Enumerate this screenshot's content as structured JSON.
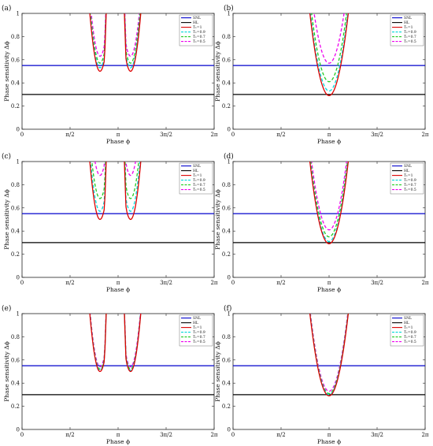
{
  "chart_data": [
    {
      "panel_label": "(a)",
      "type": "line",
      "xlabel": "Phase ϕ",
      "ylabel": "Phase sensitivity Δϕ",
      "xlim": [
        0,
        6.2832
      ],
      "ylim": [
        0,
        1
      ],
      "xticks": [
        "0",
        "π/2",
        "π",
        "3π/2",
        "2π"
      ],
      "yticks": [
        "0",
        "0.2",
        "0.4",
        "0.6",
        "0.8",
        "1"
      ],
      "hlines": [
        {
          "name": "SNL",
          "value": 0.55,
          "color": "#0000cc"
        },
        {
          "name": "HL",
          "value": 0.3,
          "color": "#000000"
        }
      ],
      "double_well": true,
      "min_positions": [
        2.55,
        3.55
      ],
      "curvature": 4.5,
      "series": [
        {
          "name": "T₁=1",
          "min": 0.5,
          "color": "#dd0000",
          "dash": "solid"
        },
        {
          "name": "T₁=0.9",
          "min": 0.53,
          "color": "#00d8d8",
          "dash": "dash"
        },
        {
          "name": "T₁=0.7",
          "min": 0.57,
          "color": "#22cc22",
          "dash": "dash"
        },
        {
          "name": "T₁=0.5",
          "min": 0.63,
          "color": "#ee00ee",
          "dash": "dash"
        }
      ]
    },
    {
      "panel_label": "(b)",
      "type": "line",
      "xlabel": "Phase ϕ",
      "ylabel": "Phase sensitivity Δϕ",
      "xlim": [
        0,
        6.2832
      ],
      "ylim": [
        0,
        1
      ],
      "xticks": [
        "0",
        "π/2",
        "π",
        "3π/2",
        "2π"
      ],
      "yticks": [
        "0",
        "0.2",
        "0.4",
        "0.6",
        "0.8",
        "1"
      ],
      "hlines": [
        {
          "name": "SNL",
          "value": 0.55,
          "color": "#0000cc"
        },
        {
          "name": "HL",
          "value": 0.3,
          "color": "#000000"
        }
      ],
      "double_well": false,
      "min_positions": [
        3.1416
      ],
      "curvature": 1.8,
      "series": [
        {
          "name": "T₁=1",
          "min": 0.29,
          "color": "#dd0000",
          "dash": "solid"
        },
        {
          "name": "T₁=0.9",
          "min": 0.33,
          "color": "#00d8d8",
          "dash": "dash"
        },
        {
          "name": "T₁=0.7",
          "min": 0.41,
          "color": "#22cc22",
          "dash": "dash"
        },
        {
          "name": "T₁=0.5",
          "min": 0.57,
          "color": "#ee00ee",
          "dash": "dash"
        }
      ]
    },
    {
      "panel_label": "(c)",
      "type": "line",
      "xlabel": "Phase ϕ",
      "ylabel": "Phase sensitivity Δϕ",
      "xlim": [
        0,
        6.2832
      ],
      "ylim": [
        0,
        1
      ],
      "xticks": [
        "0",
        "π/2",
        "π",
        "3π/2",
        "2π"
      ],
      "yticks": [
        "0",
        "0.2",
        "0.4",
        "0.6",
        "0.8",
        "1"
      ],
      "hlines": [
        {
          "name": "SNL",
          "value": 0.55,
          "color": "#0000cc"
        },
        {
          "name": "HL",
          "value": 0.3,
          "color": "#000000"
        }
      ],
      "double_well": true,
      "min_positions": [
        2.55,
        3.55
      ],
      "curvature": 4.5,
      "series": [
        {
          "name": "T₁=1",
          "min": 0.5,
          "color": "#dd0000",
          "dash": "solid"
        },
        {
          "name": "T₁=0.9",
          "min": 0.57,
          "color": "#00d8d8",
          "dash": "dash"
        },
        {
          "name": "T₁=0.7",
          "min": 0.68,
          "color": "#22cc22",
          "dash": "dash"
        },
        {
          "name": "T₁=0.5",
          "min": 0.88,
          "color": "#ee00ee",
          "dash": "dash"
        }
      ]
    },
    {
      "panel_label": "(d)",
      "type": "line",
      "xlabel": "Phase ϕ",
      "ylabel": "Phase sensitivity Δϕ",
      "xlim": [
        0,
        6.2832
      ],
      "ylim": [
        0,
        1
      ],
      "xticks": [
        "0",
        "π/2",
        "π",
        "3π/2",
        "2π"
      ],
      "yticks": [
        "0",
        "0.2",
        "0.4",
        "0.6",
        "0.8",
        "1"
      ],
      "hlines": [
        {
          "name": "SNL",
          "value": 0.55,
          "color": "#0000cc"
        },
        {
          "name": "HL",
          "value": 0.3,
          "color": "#000000"
        }
      ],
      "double_well": false,
      "min_positions": [
        3.1416
      ],
      "curvature": 1.8,
      "series": [
        {
          "name": "T₁=1",
          "min": 0.29,
          "color": "#dd0000",
          "dash": "solid"
        },
        {
          "name": "T₁=0.9",
          "min": 0.31,
          "color": "#00d8d8",
          "dash": "dash"
        },
        {
          "name": "T₁=0.7",
          "min": 0.35,
          "color": "#22cc22",
          "dash": "dash"
        },
        {
          "name": "T₁=0.5",
          "min": 0.41,
          "color": "#ee00ee",
          "dash": "dash"
        }
      ]
    },
    {
      "panel_label": "(e)",
      "type": "line",
      "xlabel": "Phase ϕ",
      "ylabel": "Phase sensitivity Δϕ",
      "xlim": [
        0,
        6.2832
      ],
      "ylim": [
        0,
        1
      ],
      "xticks": [
        "0",
        "π/2",
        "π",
        "3π/2",
        "2π"
      ],
      "yticks": [
        "0",
        "0.2",
        "0.4",
        "0.6",
        "0.8",
        "1"
      ],
      "hlines": [
        {
          "name": "SNL",
          "value": 0.55,
          "color": "#0000cc"
        },
        {
          "name": "HL",
          "value": 0.3,
          "color": "#000000"
        }
      ],
      "double_well": true,
      "min_positions": [
        2.55,
        3.55
      ],
      "curvature": 4.5,
      "series": [
        {
          "name": "T₁=1",
          "min": 0.5,
          "color": "#dd0000",
          "dash": "solid"
        },
        {
          "name": "T₁=0.9",
          "min": 0.51,
          "color": "#00d8d8",
          "dash": "dash"
        },
        {
          "name": "T₁=0.7",
          "min": 0.52,
          "color": "#22cc22",
          "dash": "dash"
        },
        {
          "name": "T₁=0.5",
          "min": 0.54,
          "color": "#ee00ee",
          "dash": "dash"
        }
      ]
    },
    {
      "panel_label": "(f)",
      "type": "line",
      "xlabel": "Phase ϕ",
      "ylabel": "Phase sensitivity Δϕ",
      "xlim": [
        0,
        6.2832
      ],
      "ylim": [
        0,
        1
      ],
      "xticks": [
        "0",
        "π/2",
        "π",
        "3π/2",
        "2π"
      ],
      "yticks": [
        "0",
        "0.2",
        "0.4",
        "0.6",
        "0.8",
        "1"
      ],
      "hlines": [
        {
          "name": "SNL",
          "value": 0.55,
          "color": "#0000cc"
        },
        {
          "name": "HL",
          "value": 0.3,
          "color": "#000000"
        }
      ],
      "double_well": false,
      "min_positions": [
        3.1416
      ],
      "curvature": 1.8,
      "series": [
        {
          "name": "T₁=1",
          "min": 0.29,
          "color": "#dd0000",
          "dash": "solid"
        },
        {
          "name": "T₁=0.9",
          "min": 0.3,
          "color": "#00d8d8",
          "dash": "dash"
        },
        {
          "name": "T₁=0.7",
          "min": 0.31,
          "color": "#22cc22",
          "dash": "dash"
        },
        {
          "name": "T₁=0.5",
          "min": 0.33,
          "color": "#ee00ee",
          "dash": "dash"
        }
      ]
    }
  ]
}
